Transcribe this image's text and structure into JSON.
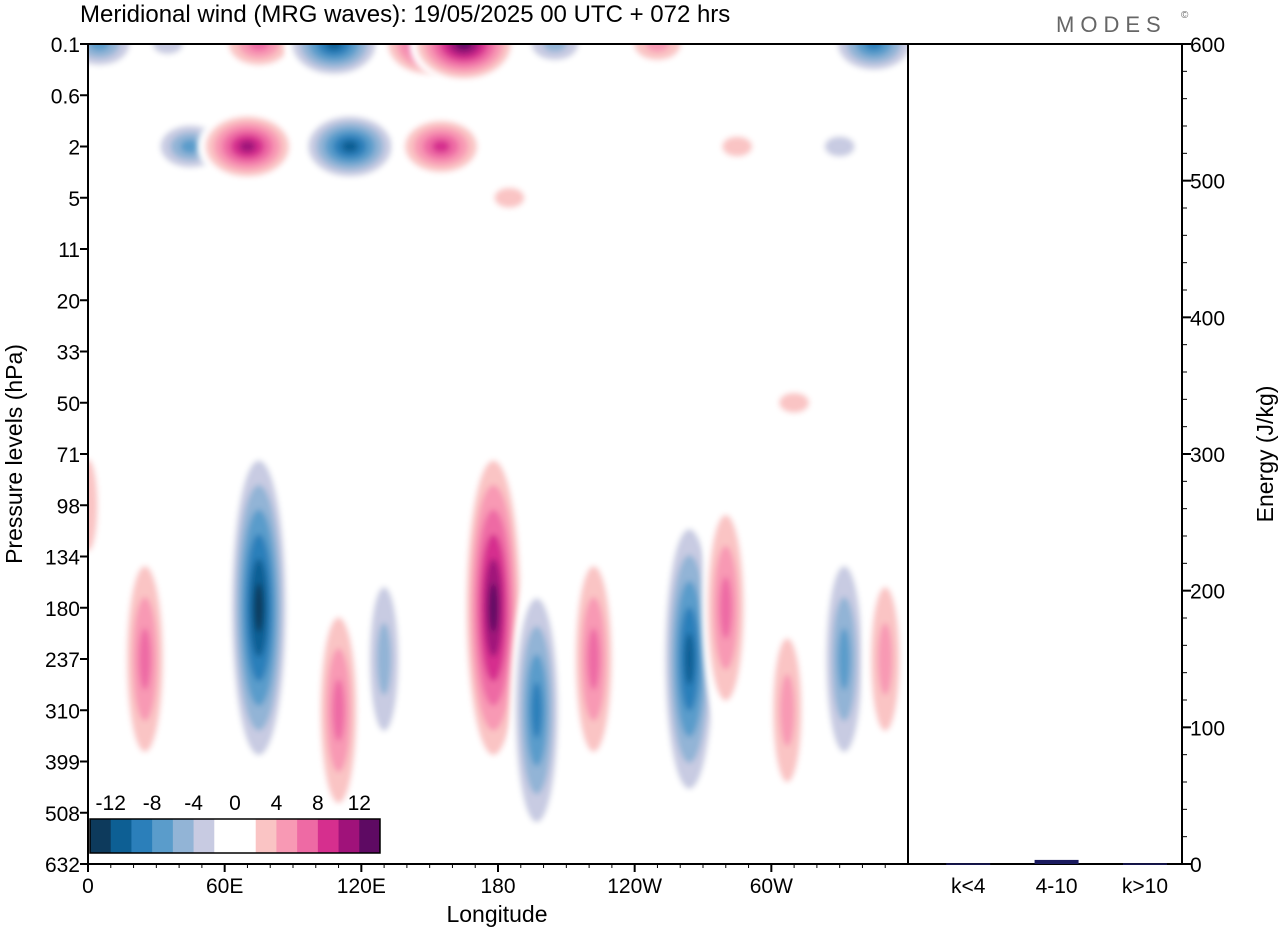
{
  "title": "Meridional wind (MRG waves):  19/05/2025  00 UTC  + 072 hrs",
  "logo": "MODES",
  "logo_mark": "©",
  "chart_data": [
    {
      "type": "heatmap",
      "xlabel": "Longitude",
      "ylabel": "Pressure levels (hPa)",
      "x_ticks": [
        {
          "lon": 0,
          "label": "0"
        },
        {
          "lon": 60,
          "label": "60E"
        },
        {
          "lon": 120,
          "label": "120E"
        },
        {
          "lon": 180,
          "label": "180"
        },
        {
          "lon": 240,
          "label": "120W"
        },
        {
          "lon": 300,
          "label": "60W"
        }
      ],
      "xlim": [
        0,
        360
      ],
      "y_ticks": [
        "0.1",
        "0.6",
        "2",
        "5",
        "11",
        "20",
        "33",
        "50",
        "71",
        "98",
        "134",
        "180",
        "237",
        "310",
        "399",
        "508",
        "632"
      ],
      "colorbar": {
        "labels": [
          "-12",
          "-8",
          "-4",
          "0",
          "4",
          "8",
          "12"
        ],
        "levels": [
          -14,
          -12,
          -10,
          -8,
          -6,
          -4,
          -2,
          0,
          2,
          4,
          6,
          8,
          10,
          12,
          14
        ],
        "colors": [
          "#0d3a5c",
          "#0d5f94",
          "#2b7fba",
          "#5a9ccb",
          "#92b4d6",
          "#c8cbe2",
          "#ffffff",
          "#ffffff",
          "#fac4c4",
          "#f899b4",
          "#ee6aa4",
          "#d62f8e",
          "#a0127a",
          "#5e0a63"
        ]
      },
      "cells": [
        {
          "lon": 5,
          "p": "0.1",
          "v": -8
        },
        {
          "lon": 35,
          "p": "0.1",
          "v": -4
        },
        {
          "lon": 75,
          "p": "0.1",
          "v": 8
        },
        {
          "lon": 108,
          "p": "0.1",
          "v": -12
        },
        {
          "lon": 150,
          "p": "0.1",
          "v": 12
        },
        {
          "lon": 165,
          "p": "0.1",
          "v": 14
        },
        {
          "lon": 205,
          "p": "0.1",
          "v": -6
        },
        {
          "lon": 250,
          "p": "0.1",
          "v": 6
        },
        {
          "lon": 345,
          "p": "0.1",
          "v": -10
        },
        {
          "lon": 45,
          "p": "2",
          "v": -8
        },
        {
          "lon": 70,
          "p": "2",
          "v": 12
        },
        {
          "lon": 115,
          "p": "2",
          "v": -12
        },
        {
          "lon": 155,
          "p": "2",
          "v": 10
        },
        {
          "lon": 285,
          "p": "2",
          "v": 4
        },
        {
          "lon": 330,
          "p": "2",
          "v": -4
        },
        {
          "lon": 45,
          "p": "5",
          "v": -2
        },
        {
          "lon": 185,
          "p": "5",
          "v": 4
        },
        {
          "lon": 330,
          "p": "5",
          "v": -2
        },
        {
          "lon": 185,
          "p": "20",
          "v": 2
        },
        {
          "lon": 270,
          "p": "20",
          "v": -2
        },
        {
          "lon": 80,
          "p": "50",
          "v": 2
        },
        {
          "lon": 310,
          "p": "50",
          "v": 4
        },
        {
          "lon": 0,
          "p": "98",
          "v": 4
        },
        {
          "lon": 25,
          "p": "237",
          "v": 8
        },
        {
          "lon": 75,
          "p": "180",
          "v": -14
        },
        {
          "lon": 110,
          "p": "310",
          "v": 8
        },
        {
          "lon": 130,
          "p": "237",
          "v": -6
        },
        {
          "lon": 178,
          "p": "180",
          "v": 14
        },
        {
          "lon": 197,
          "p": "310",
          "v": -10
        },
        {
          "lon": 222,
          "p": "237",
          "v": 8
        },
        {
          "lon": 264,
          "p": "237",
          "v": -12
        },
        {
          "lon": 280,
          "p": "180",
          "v": 8
        },
        {
          "lon": 307,
          "p": "310",
          "v": 6
        },
        {
          "lon": 332,
          "p": "237",
          "v": -8
        },
        {
          "lon": 350,
          "p": "237",
          "v": 6
        }
      ]
    },
    {
      "type": "bar",
      "ylabel": "Energy (J/kg)",
      "categories": [
        "k<4",
        "4-10",
        "k>10"
      ],
      "values": [
        0.5,
        3,
        0.5
      ],
      "ylim": [
        0,
        600
      ],
      "y_ticks": [
        "0",
        "100",
        "200",
        "300",
        "400",
        "500",
        "600"
      ],
      "bar_color": "#1a1a5e"
    }
  ]
}
